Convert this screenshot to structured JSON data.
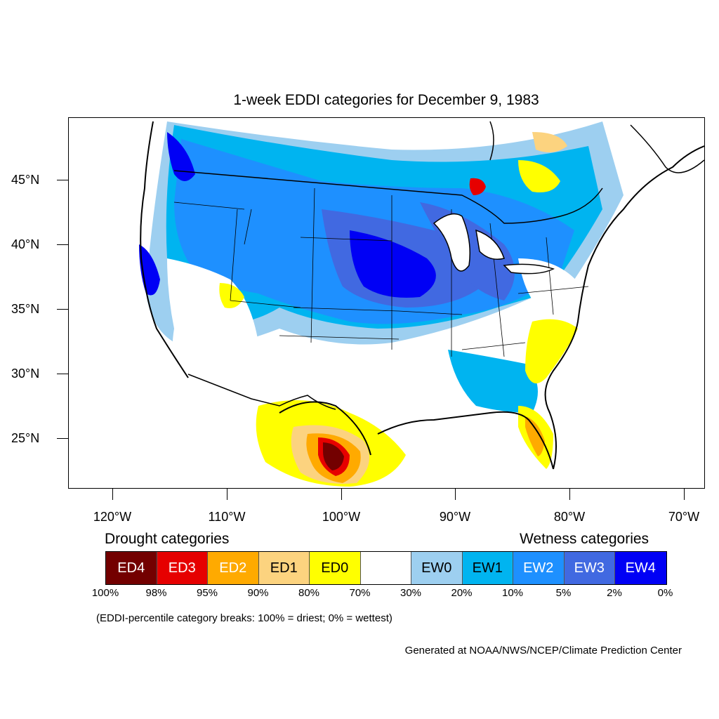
{
  "title": "1-week EDDI categories for December 9, 1983",
  "lat_labels": [
    "45°N",
    "40°N",
    "35°N",
    "30°N",
    "25°N"
  ],
  "lon_labels": [
    "120°W",
    "110°W",
    "100°W",
    "90°W",
    "80°W",
    "70°W"
  ],
  "legend": {
    "drought_heading": "Drought categories",
    "wetness_heading": "Wetness categories",
    "categories": [
      {
        "label": "ED4",
        "color": "#730000",
        "text_color": "#ffffff"
      },
      {
        "label": "ED3",
        "color": "#e60000",
        "text_color": "#ffffff"
      },
      {
        "label": "ED2",
        "color": "#ffaa00",
        "text_color": "#ffffff"
      },
      {
        "label": "ED1",
        "color": "#fcd37f",
        "text_color": "#000000"
      },
      {
        "label": "ED0",
        "color": "#ffff00",
        "text_color": "#000000"
      },
      {
        "label": "",
        "color": "#ffffff",
        "text_color": "#000000"
      },
      {
        "label": "EW0",
        "color": "#9dcff0",
        "text_color": "#000000"
      },
      {
        "label": "EW1",
        "color": "#00b4f0",
        "text_color": "#000000"
      },
      {
        "label": "EW2",
        "color": "#1e90ff",
        "text_color": "#ffffff"
      },
      {
        "label": "EW3",
        "color": "#4169e1",
        "text_color": "#ffffff"
      },
      {
        "label": "EW4",
        "color": "#0000f5",
        "text_color": "#ffffff"
      }
    ],
    "breaks": [
      "100%",
      "98%",
      "95%",
      "90%",
      "80%",
      "70%",
      "30%",
      "20%",
      "10%",
      "5%",
      "2%",
      "0%"
    ]
  },
  "note": "(EDDI-percentile category breaks: 100% = driest; 0% = wettest)",
  "credit": "Generated at NOAA/NWS/NCEP/Climate Prediction Center",
  "colors": {
    "ed4": "#730000",
    "ed3": "#e60000",
    "ed2": "#ffaa00",
    "ed1": "#fcd37f",
    "ed0": "#ffff00",
    "ew0": "#9dcff0",
    "ew1": "#00b4f0",
    "ew2": "#1e90ff",
    "ew3": "#4169e1",
    "ew4": "#0000f5"
  }
}
